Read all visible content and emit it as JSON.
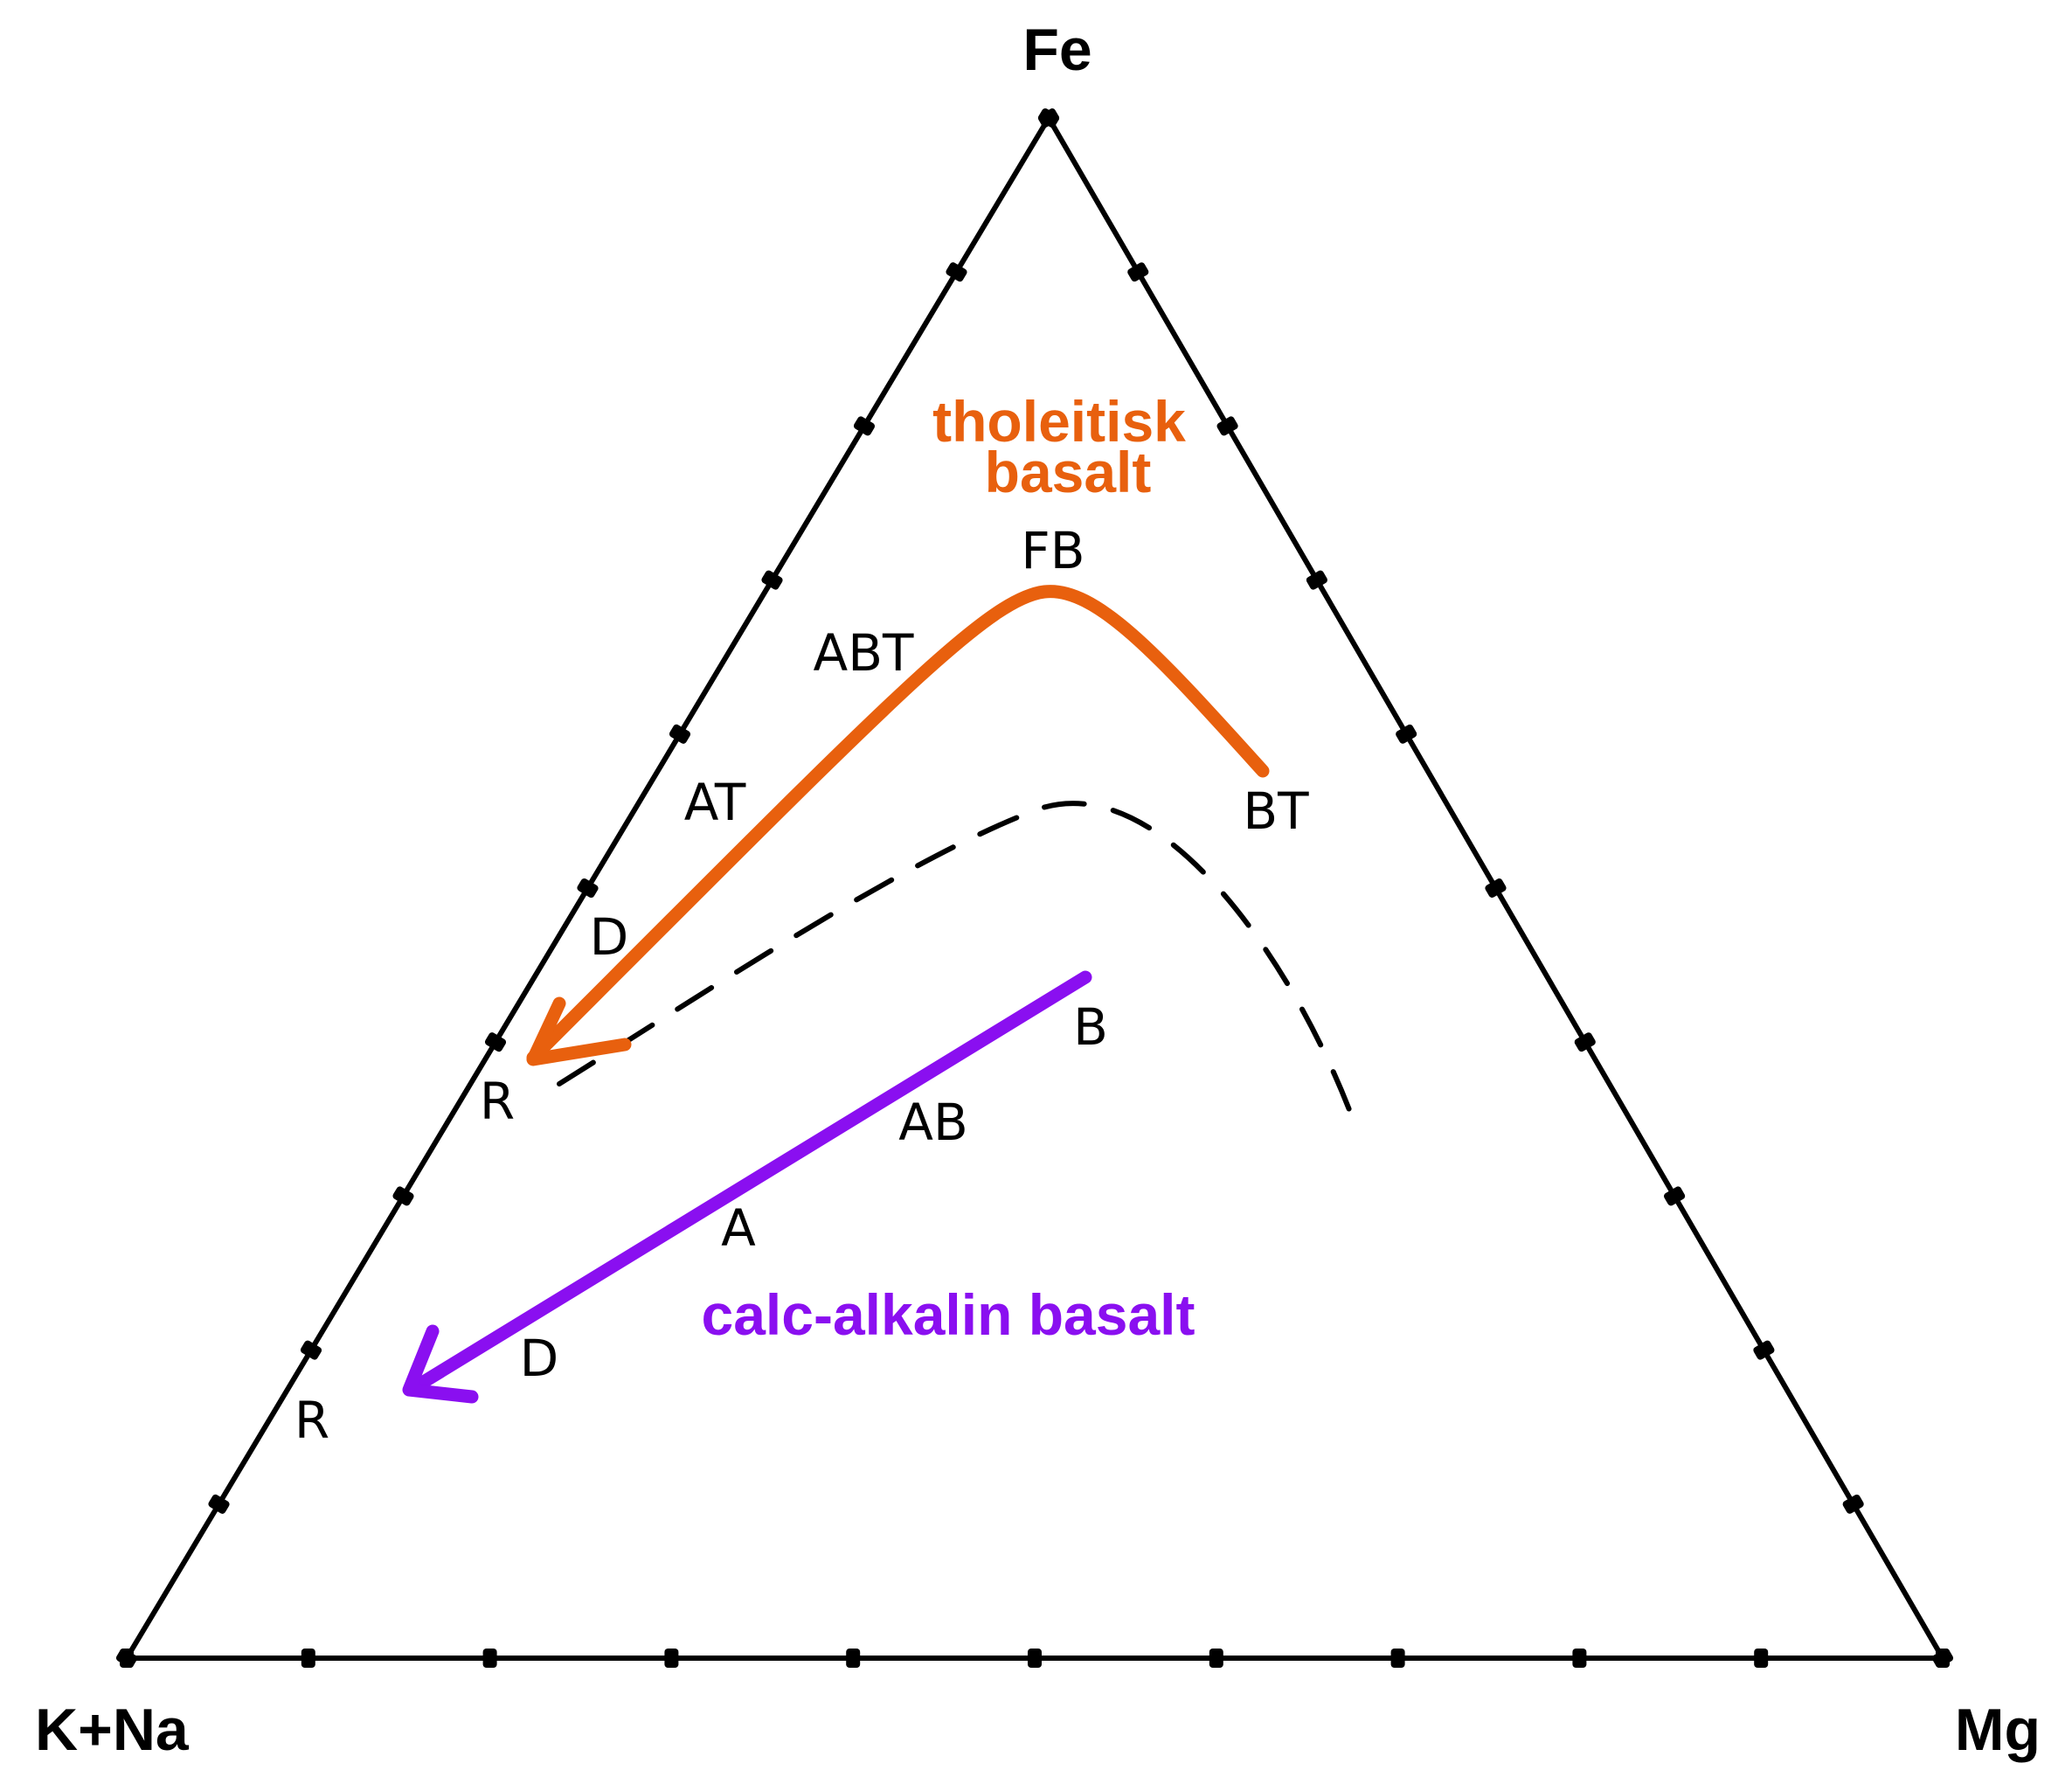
{
  "vertices": {
    "top": "Fe",
    "bottom_left": "K+Na",
    "bottom_right": "Mg"
  },
  "tholeiitic": {
    "title_line1": "tholeitisk",
    "title_line2": "basalt",
    "color": "#e8600e",
    "labels": {
      "bt": "BT",
      "fb": "FB",
      "abt": "ABT",
      "at": "AT",
      "d": "D",
      "r": "R"
    }
  },
  "calc_alkaline": {
    "title": "calc-alkalin basalt",
    "color": "#8a0ff0",
    "labels": {
      "b": "B",
      "ab": "AB",
      "a": "A",
      "d": "D",
      "r": "R"
    }
  },
  "colors": {
    "frame": "#000000",
    "boundary": "#000000",
    "background": "#ffffff"
  }
}
